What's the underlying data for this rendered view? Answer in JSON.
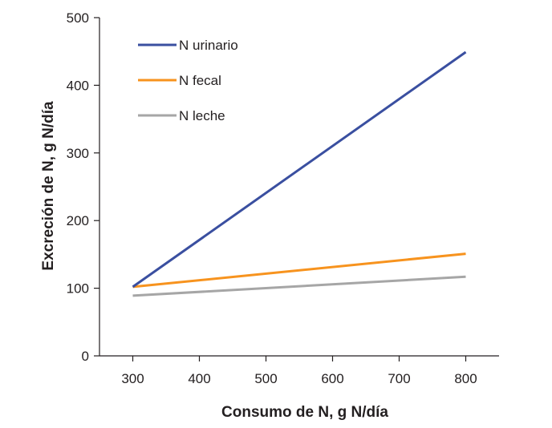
{
  "chart_data": {
    "type": "line",
    "xlabel": "Consumo de N, g N/día",
    "ylabel": "Excreción de N, g N/día",
    "xlim": [
      250,
      850
    ],
    "ylim": [
      0,
      500
    ],
    "x_ticks": [
      300,
      400,
      500,
      600,
      700,
      800
    ],
    "y_ticks": [
      0,
      100,
      200,
      300,
      400,
      500
    ],
    "grid": false,
    "legend_position": "top-left",
    "series": [
      {
        "name": "N urinario",
        "color": "#3a4fa0",
        "x": [
          300,
          800
        ],
        "y": [
          102,
          449
        ]
      },
      {
        "name": "N fecal",
        "color": "#f7931e",
        "x": [
          300,
          800
        ],
        "y": [
          102,
          151
        ]
      },
      {
        "name": "N leche",
        "color": "#a6a6a6",
        "x": [
          300,
          800
        ],
        "y": [
          89,
          117
        ]
      }
    ]
  }
}
